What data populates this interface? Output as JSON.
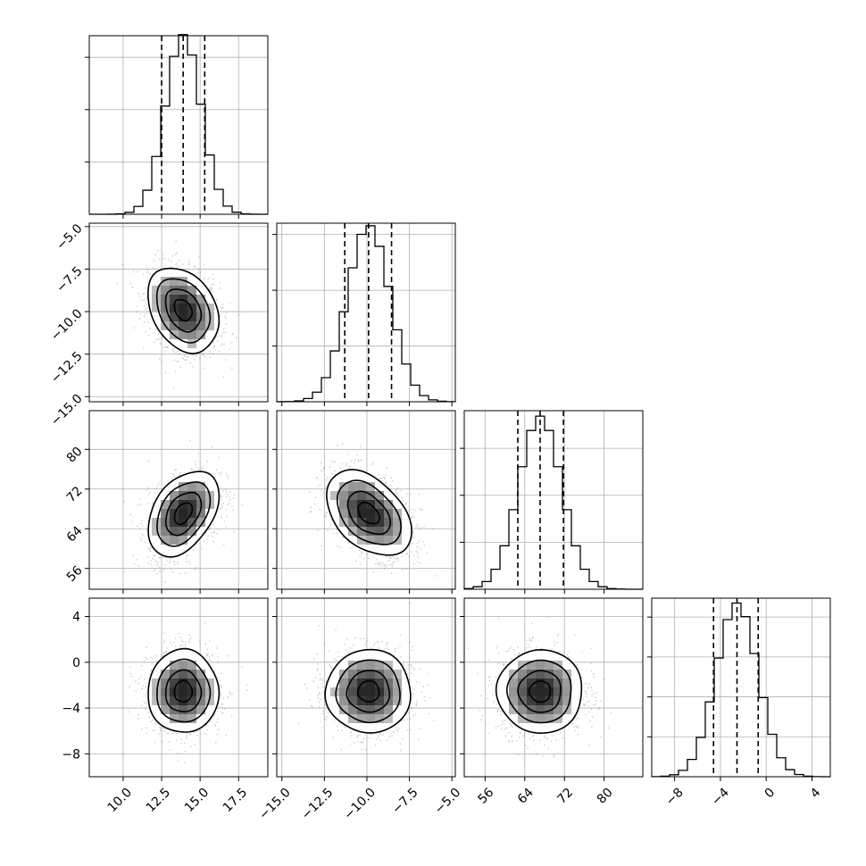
{
  "chart_data": {
    "type": "corner",
    "grid": true,
    "colors": {
      "line": "#000000",
      "grid": "#b0b0b0",
      "sample": "#6b6b6b"
    },
    "variables": [
      {
        "range": [
          7.8,
          19.4
        ],
        "ticks": [
          10.0,
          12.5,
          15.0,
          17.5
        ],
        "tick_labels": [
          "10.0",
          "12.5",
          "15.0",
          "17.5"
        ],
        "mean": 13.9,
        "sd": 1.15,
        "quantiles": [
          12.5,
          13.9,
          15.3
        ],
        "hist_peak": 0.325
      },
      {
        "range": [
          -15.3,
          -4.8
        ],
        "ticks": [
          -15.0,
          -12.5,
          -10.0,
          -7.5,
          -5.0
        ],
        "tick_labels": [
          "−15.0",
          "−12.5",
          "−10.0",
          "−7.5",
          "−5.0"
        ],
        "mean": -9.9,
        "sd": 1.25,
        "quantiles": [
          -11.3,
          -9.9,
          -8.55
        ],
        "hist_peak": 0.305
      },
      {
        "range": [
          51.8,
          87.8
        ],
        "ticks": [
          56,
          64,
          72,
          80
        ],
        "tick_labels": [
          "56",
          "64",
          "72",
          "80"
        ],
        "mean": 67.1,
        "sd": 4.3,
        "quantiles": [
          62.6,
          67.1,
          71.8
        ],
        "hist_peak": 0.0905
      },
      {
        "range": [
          -10.0,
          5.6
        ],
        "ticks": [
          -8,
          -4,
          0,
          4
        ],
        "tick_labels": [
          "−8",
          "−4",
          "0",
          "4"
        ],
        "mean": -2.55,
        "sd": 1.82,
        "quantiles": [
          -4.6,
          -2.55,
          -0.7
        ],
        "hist_peak": 0.213
      }
    ],
    "histograms": [
      {
        "var": 0,
        "yticks": [
          0.1,
          0.2,
          0.3
        ]
      },
      {
        "var": 1,
        "yticks": [
          0.1,
          0.2,
          0.3
        ]
      },
      {
        "var": 2,
        "yticks": [
          0.025,
          0.05,
          0.075
        ]
      },
      {
        "var": 3,
        "yticks": [
          0.05,
          0.1,
          0.15,
          0.2
        ]
      }
    ],
    "scatter_panels": [
      {
        "x_var": 0,
        "y_var": 1,
        "correlation": -0.3
      },
      {
        "x_var": 0,
        "y_var": 2,
        "correlation": 0.4
      },
      {
        "x_var": 1,
        "y_var": 2,
        "correlation": -0.42
      },
      {
        "x_var": 0,
        "y_var": 3,
        "correlation": 0.0
      },
      {
        "x_var": 1,
        "y_var": 3,
        "correlation": 0.0
      },
      {
        "x_var": 2,
        "y_var": 3,
        "correlation": 0.0
      }
    ],
    "contour_levels_sigma": [
      0.5,
      1.0,
      1.5,
      2.0
    ]
  }
}
